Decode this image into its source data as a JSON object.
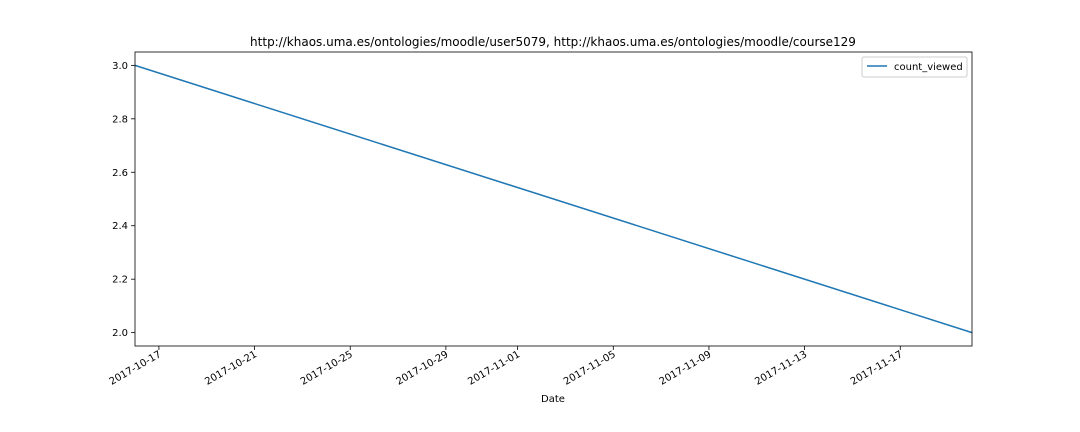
{
  "chart_data": {
    "type": "line",
    "title": "http://khaos.uma.es/ontologies/moodle/user5079, http://khaos.uma.es/ontologies/moodle/course129",
    "xlabel": "Date",
    "ylabel": "",
    "xlim": [
      "2017-10-16",
      "2017-11-20"
    ],
    "ylim": [
      1.95,
      3.05
    ],
    "x_ticks": [
      "2017-10-17",
      "2017-10-21",
      "2017-10-25",
      "2017-10-29",
      "2017-11-01",
      "2017-11-05",
      "2017-11-09",
      "2017-11-13",
      "2017-11-17"
    ],
    "y_ticks": [
      2.0,
      2.2,
      2.4,
      2.6,
      2.8,
      3.0
    ],
    "y_tick_labels": [
      "2.0",
      "2.2",
      "2.4",
      "2.6",
      "2.8",
      "3.0"
    ],
    "grid": false,
    "legend_position": "top-right",
    "series": [
      {
        "name": "count_viewed",
        "color": "#1f77b4",
        "x": [
          "2017-10-16",
          "2017-11-20"
        ],
        "y": [
          3.0,
          2.0
        ]
      }
    ]
  }
}
